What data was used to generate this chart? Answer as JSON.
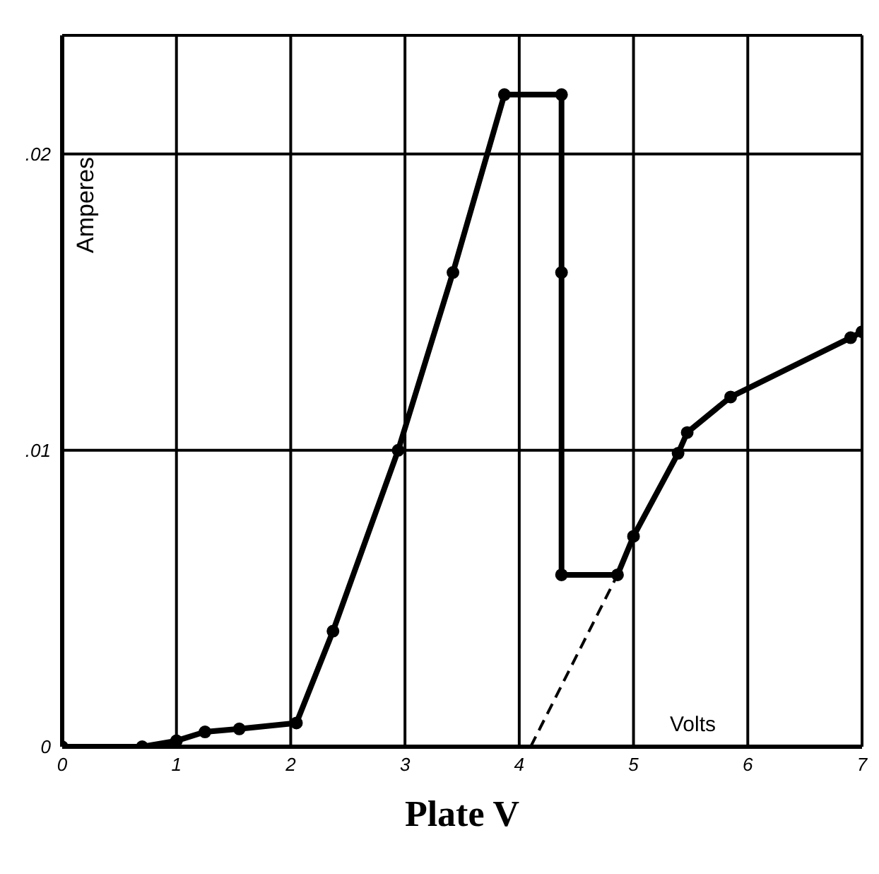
{
  "chart_data": {
    "type": "line",
    "xlabel": "Plate V",
    "ylabel": "Amperes",
    "annotations": [
      "Volts"
    ],
    "xlim": [
      0,
      7
    ],
    "xticks": [
      0,
      1,
      2,
      3,
      4,
      5,
      6,
      7
    ],
    "ylim": [
      0,
      0.024
    ],
    "yticks": [
      0,
      {
        "value": 0.01,
        "label": ".01"
      },
      {
        "value": 0.02,
        "label": ".02"
      }
    ],
    "grid": true,
    "line_style": "solid",
    "series": [
      {
        "color": "#000000",
        "marker": "circle",
        "x": [
          0,
          0.7,
          1.0,
          1.25,
          1.55,
          2.05,
          2.37,
          2.94,
          3.42,
          3.87,
          4.37,
          4.37,
          4.37,
          4.86,
          5.0,
          5.39,
          5.47,
          5.85,
          6.9,
          7.0
        ],
        "values": [
          0,
          0,
          0.0002,
          0.0005,
          0.0006,
          0.0008,
          0.0039,
          0.01,
          0.016,
          0.022,
          0.022,
          0.016,
          0.0058,
          0.0058,
          0.0071,
          0.0099,
          0.0106,
          0.0118,
          0.0138,
          0.014
        ]
      },
      {
        "color": "#000000",
        "marker": "none",
        "line_style": "dashed",
        "x": [
          4.1,
          4.86
        ],
        "values": [
          0,
          0.0058
        ]
      }
    ]
  }
}
